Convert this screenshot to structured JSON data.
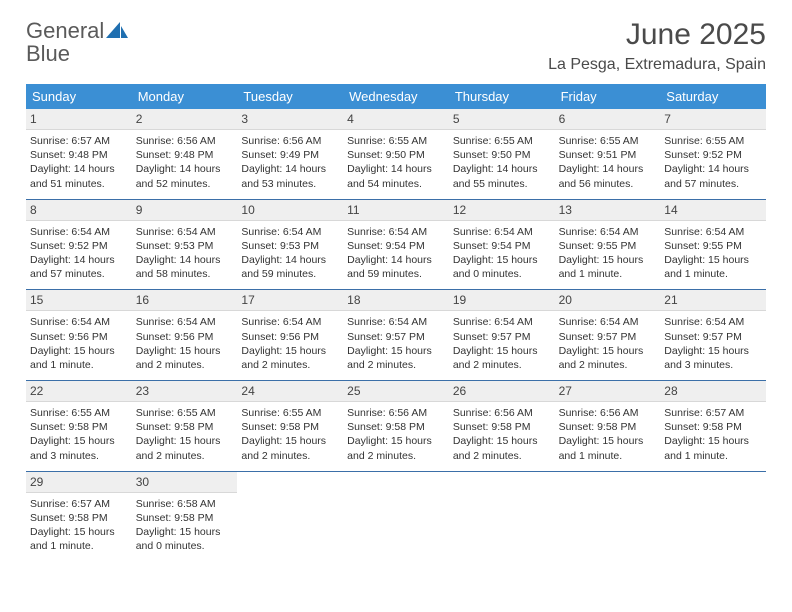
{
  "colors": {
    "header_bg": "#3b8fd4",
    "header_text": "#ffffff",
    "daynum_bg": "#efefef",
    "border": "#3b6fa8",
    "logo_gray": "#5a5a5a",
    "logo_blue": "#2a7fbf",
    "body_text": "#333333"
  },
  "logo": {
    "text_gray": "General",
    "text_blue": "Blue"
  },
  "title": "June 2025",
  "location": "La Pesga, Extremadura, Spain",
  "dow": [
    "Sunday",
    "Monday",
    "Tuesday",
    "Wednesday",
    "Thursday",
    "Friday",
    "Saturday"
  ],
  "weeks": [
    [
      {
        "n": "1",
        "sr": "Sunrise: 6:57 AM",
        "ss": "Sunset: 9:48 PM",
        "d1": "Daylight: 14 hours",
        "d2": "and 51 minutes."
      },
      {
        "n": "2",
        "sr": "Sunrise: 6:56 AM",
        "ss": "Sunset: 9:48 PM",
        "d1": "Daylight: 14 hours",
        "d2": "and 52 minutes."
      },
      {
        "n": "3",
        "sr": "Sunrise: 6:56 AM",
        "ss": "Sunset: 9:49 PM",
        "d1": "Daylight: 14 hours",
        "d2": "and 53 minutes."
      },
      {
        "n": "4",
        "sr": "Sunrise: 6:55 AM",
        "ss": "Sunset: 9:50 PM",
        "d1": "Daylight: 14 hours",
        "d2": "and 54 minutes."
      },
      {
        "n": "5",
        "sr": "Sunrise: 6:55 AM",
        "ss": "Sunset: 9:50 PM",
        "d1": "Daylight: 14 hours",
        "d2": "and 55 minutes."
      },
      {
        "n": "6",
        "sr": "Sunrise: 6:55 AM",
        "ss": "Sunset: 9:51 PM",
        "d1": "Daylight: 14 hours",
        "d2": "and 56 minutes."
      },
      {
        "n": "7",
        "sr": "Sunrise: 6:55 AM",
        "ss": "Sunset: 9:52 PM",
        "d1": "Daylight: 14 hours",
        "d2": "and 57 minutes."
      }
    ],
    [
      {
        "n": "8",
        "sr": "Sunrise: 6:54 AM",
        "ss": "Sunset: 9:52 PM",
        "d1": "Daylight: 14 hours",
        "d2": "and 57 minutes."
      },
      {
        "n": "9",
        "sr": "Sunrise: 6:54 AM",
        "ss": "Sunset: 9:53 PM",
        "d1": "Daylight: 14 hours",
        "d2": "and 58 minutes."
      },
      {
        "n": "10",
        "sr": "Sunrise: 6:54 AM",
        "ss": "Sunset: 9:53 PM",
        "d1": "Daylight: 14 hours",
        "d2": "and 59 minutes."
      },
      {
        "n": "11",
        "sr": "Sunrise: 6:54 AM",
        "ss": "Sunset: 9:54 PM",
        "d1": "Daylight: 14 hours",
        "d2": "and 59 minutes."
      },
      {
        "n": "12",
        "sr": "Sunrise: 6:54 AM",
        "ss": "Sunset: 9:54 PM",
        "d1": "Daylight: 15 hours",
        "d2": "and 0 minutes."
      },
      {
        "n": "13",
        "sr": "Sunrise: 6:54 AM",
        "ss": "Sunset: 9:55 PM",
        "d1": "Daylight: 15 hours",
        "d2": "and 1 minute."
      },
      {
        "n": "14",
        "sr": "Sunrise: 6:54 AM",
        "ss": "Sunset: 9:55 PM",
        "d1": "Daylight: 15 hours",
        "d2": "and 1 minute."
      }
    ],
    [
      {
        "n": "15",
        "sr": "Sunrise: 6:54 AM",
        "ss": "Sunset: 9:56 PM",
        "d1": "Daylight: 15 hours",
        "d2": "and 1 minute."
      },
      {
        "n": "16",
        "sr": "Sunrise: 6:54 AM",
        "ss": "Sunset: 9:56 PM",
        "d1": "Daylight: 15 hours",
        "d2": "and 2 minutes."
      },
      {
        "n": "17",
        "sr": "Sunrise: 6:54 AM",
        "ss": "Sunset: 9:56 PM",
        "d1": "Daylight: 15 hours",
        "d2": "and 2 minutes."
      },
      {
        "n": "18",
        "sr": "Sunrise: 6:54 AM",
        "ss": "Sunset: 9:57 PM",
        "d1": "Daylight: 15 hours",
        "d2": "and 2 minutes."
      },
      {
        "n": "19",
        "sr": "Sunrise: 6:54 AM",
        "ss": "Sunset: 9:57 PM",
        "d1": "Daylight: 15 hours",
        "d2": "and 2 minutes."
      },
      {
        "n": "20",
        "sr": "Sunrise: 6:54 AM",
        "ss": "Sunset: 9:57 PM",
        "d1": "Daylight: 15 hours",
        "d2": "and 2 minutes."
      },
      {
        "n": "21",
        "sr": "Sunrise: 6:54 AM",
        "ss": "Sunset: 9:57 PM",
        "d1": "Daylight: 15 hours",
        "d2": "and 3 minutes."
      }
    ],
    [
      {
        "n": "22",
        "sr": "Sunrise: 6:55 AM",
        "ss": "Sunset: 9:58 PM",
        "d1": "Daylight: 15 hours",
        "d2": "and 3 minutes."
      },
      {
        "n": "23",
        "sr": "Sunrise: 6:55 AM",
        "ss": "Sunset: 9:58 PM",
        "d1": "Daylight: 15 hours",
        "d2": "and 2 minutes."
      },
      {
        "n": "24",
        "sr": "Sunrise: 6:55 AM",
        "ss": "Sunset: 9:58 PM",
        "d1": "Daylight: 15 hours",
        "d2": "and 2 minutes."
      },
      {
        "n": "25",
        "sr": "Sunrise: 6:56 AM",
        "ss": "Sunset: 9:58 PM",
        "d1": "Daylight: 15 hours",
        "d2": "and 2 minutes."
      },
      {
        "n": "26",
        "sr": "Sunrise: 6:56 AM",
        "ss": "Sunset: 9:58 PM",
        "d1": "Daylight: 15 hours",
        "d2": "and 2 minutes."
      },
      {
        "n": "27",
        "sr": "Sunrise: 6:56 AM",
        "ss": "Sunset: 9:58 PM",
        "d1": "Daylight: 15 hours",
        "d2": "and 1 minute."
      },
      {
        "n": "28",
        "sr": "Sunrise: 6:57 AM",
        "ss": "Sunset: 9:58 PM",
        "d1": "Daylight: 15 hours",
        "d2": "and 1 minute."
      }
    ],
    [
      {
        "n": "29",
        "sr": "Sunrise: 6:57 AM",
        "ss": "Sunset: 9:58 PM",
        "d1": "Daylight: 15 hours",
        "d2": "and 1 minute."
      },
      {
        "n": "30",
        "sr": "Sunrise: 6:58 AM",
        "ss": "Sunset: 9:58 PM",
        "d1": "Daylight: 15 hours",
        "d2": "and 0 minutes."
      },
      null,
      null,
      null,
      null,
      null
    ]
  ]
}
